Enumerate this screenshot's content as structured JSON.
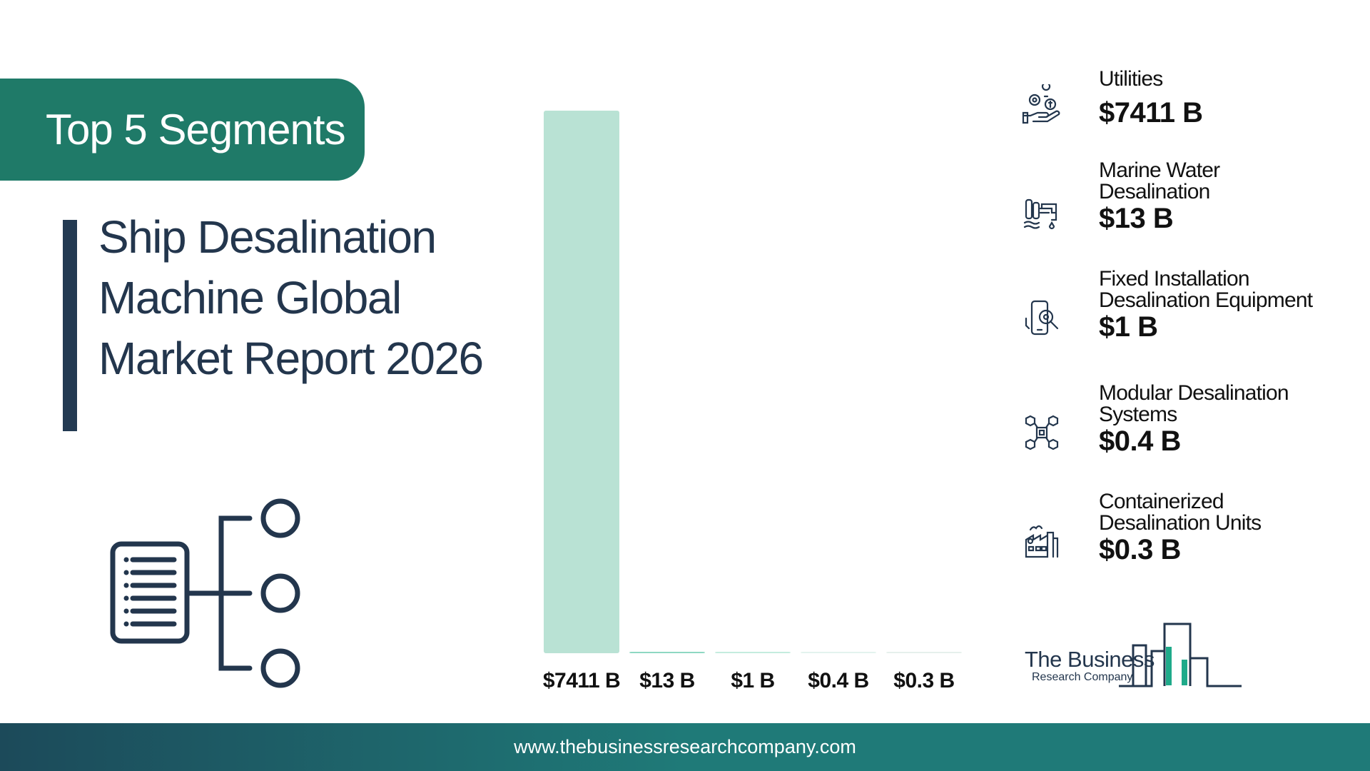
{
  "header": {
    "badge": "Top 5 Segments"
  },
  "report": {
    "title_lines": [
      "Ship Desalination",
      "Machine Global",
      "Market Report 2026"
    ]
  },
  "chart_data": {
    "type": "bar",
    "categories": [
      "Utilities",
      "Marine Water Desalination",
      "Fixed Installation Desalination Equipment",
      "Modular Desalination Systems",
      "Containerized Desalination Units"
    ],
    "values": [
      7411,
      13,
      1,
      0.4,
      0.3
    ],
    "value_labels": [
      "$7411 B",
      "$13 B",
      "$1 B",
      "$0.4 B",
      "$0.3 B"
    ],
    "unit": "$ B",
    "colors": [
      "#b9e2d4",
      "#8ed8c2",
      "#c4ecde",
      "#e3f3ee",
      "#e6f0ec"
    ],
    "ylim": [
      0,
      7411
    ]
  },
  "legend": [
    {
      "name_lines": [
        "Utilities"
      ],
      "value": "$7411 B",
      "icon": "hand-money-gear-icon",
      "color": "#d6ece4"
    },
    {
      "name_lines": [
        "Marine Water",
        "Desalination"
      ],
      "value": "$13 B",
      "icon": "water-desalination-plant-icon",
      "color": "#6fe8c4"
    },
    {
      "name_lines": [
        "Fixed Installation",
        "Desalination Equipment"
      ],
      "value": "$1 B",
      "icon": "mobile-gear-icon",
      "color": "#3fcf9b"
    },
    {
      "name_lines": [
        "Modular Desalination",
        "Systems"
      ],
      "value": "$0.4 B",
      "icon": "modular-cubes-icon",
      "color": "#2f9e72"
    },
    {
      "name_lines": [
        "Containerized",
        "Desalination Units"
      ],
      "value": "$0.3 B",
      "icon": "factory-icon",
      "color": "#22664e"
    }
  ],
  "logo": {
    "line1": "The Business",
    "line2": "Research Company"
  },
  "footer": {
    "url": "www.thebusinessresearchcompany.com"
  }
}
